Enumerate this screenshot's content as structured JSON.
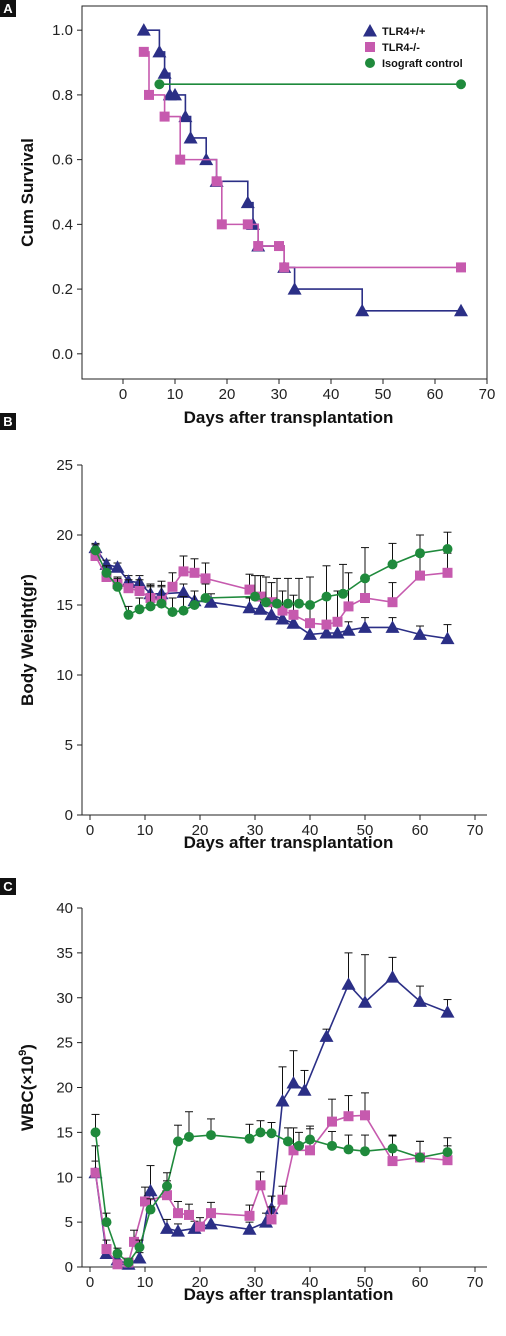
{
  "colors": {
    "tlr4_wt": "#2b2f86",
    "tlr4_ko": "#c65aae",
    "isograft": "#1f8a3c"
  },
  "chart_data": [
    {
      "panel": "A",
      "type": "line",
      "step": true,
      "xlabel": "Days after transplantation",
      "ylabel": "Cum Survival",
      "xlim": [
        -5,
        70
      ],
      "ylim": [
        -0.05,
        1.05
      ],
      "xticks": [
        0,
        10,
        20,
        30,
        40,
        50,
        60,
        70
      ],
      "yticks": [
        0.0,
        0.2,
        0.4,
        0.6,
        0.8,
        1.0
      ],
      "ytick_format": "fixed1",
      "legend_position": "top-right",
      "series": [
        {
          "name": "TLR4+/+",
          "marker": "triangle",
          "color_key": "tlr4_wt",
          "x": [
            4,
            7,
            8,
            9,
            10,
            12,
            13,
            16,
            18,
            24,
            25,
            26,
            31,
            33,
            46,
            65
          ],
          "y": [
            1.0,
            0.933,
            0.867,
            0.8,
            0.8,
            0.733,
            0.667,
            0.6,
            0.533,
            0.467,
            0.4,
            0.333,
            0.267,
            0.2,
            0.133,
            0.133
          ]
        },
        {
          "name": "TLR4-/-",
          "marker": "square",
          "color_key": "tlr4_ko",
          "x": [
            4,
            5,
            8,
            11,
            18,
            19,
            24,
            26,
            30,
            31,
            65
          ],
          "y": [
            0.933,
            0.8,
            0.733,
            0.6,
            0.533,
            0.4,
            0.4,
            0.333,
            0.333,
            0.267,
            0.267
          ]
        },
        {
          "name": "Isograft control",
          "marker": "circle",
          "color_key": "isograft",
          "x": [
            7,
            65
          ],
          "y": [
            0.833,
            0.833
          ]
        }
      ]
    },
    {
      "panel": "B",
      "type": "line",
      "xlabel": "Days after transplantation",
      "ylabel": "Body Weight(gr)",
      "xlim": [
        0,
        70
      ],
      "ylim": [
        0,
        25
      ],
      "xticks": [
        0,
        10,
        20,
        30,
        40,
        50,
        60,
        70
      ],
      "yticks": [
        0,
        5,
        10,
        15,
        20,
        25
      ],
      "series": [
        {
          "name": "TLR4+/+",
          "marker": "triangle",
          "color_key": "tlr4_wt",
          "x": [
            1,
            3,
            5,
            7,
            9,
            11,
            13,
            17,
            19,
            22,
            29,
            31,
            33,
            35,
            37,
            40,
            43,
            45,
            47,
            50,
            55,
            60,
            65
          ],
          "y": [
            19.1,
            17.9,
            17.7,
            16.7,
            16.6,
            15.8,
            15.8,
            15.9,
            15.3,
            15.2,
            14.8,
            14.7,
            14.3,
            14.0,
            13.7,
            12.9,
            13.0,
            13.0,
            13.2,
            13.4,
            13.4,
            12.9,
            12.6
          ],
          "err": [
            0.3,
            0.3,
            0.3,
            0.4,
            0.5,
            0.6,
            0.6,
            0.6,
            0.7,
            0.6,
            0.7,
            0.8,
            0.7,
            0.8,
            0.8,
            0.6,
            0.6,
            0.6,
            0.6,
            0.7,
            0.7,
            0.6,
            1.0
          ]
        },
        {
          "name": "TLR4-/-",
          "marker": "square",
          "color_key": "tlr4_ko",
          "x": [
            1,
            3,
            5,
            7,
            9,
            11,
            13,
            15,
            17,
            19,
            21,
            29,
            31,
            33,
            35,
            37,
            40,
            43,
            45,
            47,
            50,
            55,
            60,
            65
          ],
          "y": [
            18.5,
            17.0,
            16.5,
            16.2,
            16.0,
            15.5,
            15.3,
            16.3,
            17.4,
            17.3,
            16.9,
            16.1,
            15.6,
            15.2,
            14.6,
            14.3,
            13.7,
            13.6,
            13.8,
            14.9,
            15.5,
            15.2,
            17.1,
            17.3
          ],
          "err": [
            0.4,
            0.4,
            0.5,
            0.6,
            0.8,
            1.0,
            1.0,
            1.0,
            1.1,
            1.0,
            1.1,
            1.1,
            1.5,
            1.4,
            1.4,
            1.4,
            1.5,
            1.8,
            2.2,
            2.4,
            1.5,
            1.4,
            1.4,
            1.4
          ]
        },
        {
          "name": "Isograft control",
          "marker": "circle",
          "color_key": "isograft",
          "x": [
            1,
            3,
            5,
            7,
            9,
            11,
            13,
            15,
            17,
            19,
            21,
            30,
            32,
            34,
            36,
            38,
            40,
            43,
            46,
            50,
            55,
            60,
            65
          ],
          "y": [
            18.9,
            17.3,
            16.3,
            14.3,
            14.7,
            14.9,
            15.1,
            14.5,
            14.6,
            15.0,
            15.5,
            15.6,
            15.2,
            15.1,
            15.1,
            15.1,
            15.0,
            15.6,
            15.8,
            16.9,
            17.9,
            18.7,
            19.0
          ],
          "err": [
            0.4,
            0.5,
            0.6,
            0.6,
            0.8,
            1.4,
            1.6,
            1.0,
            1.0,
            1.0,
            1.0,
            1.5,
            1.8,
            1.8,
            1.8,
            1.8,
            2.0,
            2.2,
            2.1,
            2.2,
            1.5,
            1.3,
            1.2
          ]
        }
      ]
    },
    {
      "panel": "C",
      "type": "line",
      "xlabel": "Days after transplantation",
      "ylabel_base": "WBC(×10",
      "ylabel_sup": "9",
      "ylabel_end": ")",
      "xlim": [
        0,
        70
      ],
      "ylim": [
        0,
        40
      ],
      "xticks": [
        0,
        10,
        20,
        30,
        40,
        50,
        60,
        70
      ],
      "yticks": [
        0,
        5,
        10,
        15,
        20,
        25,
        30,
        35,
        40
      ],
      "series": [
        {
          "name": "TLR4+/+",
          "marker": "triangle",
          "color_key": "tlr4_wt",
          "x": [
            1,
            3,
            5,
            7,
            9,
            11,
            14,
            16,
            19,
            22,
            29,
            32,
            33,
            35,
            37,
            39,
            43,
            47,
            50,
            55,
            60,
            65
          ],
          "y": [
            10.5,
            1.5,
            0.8,
            0.3,
            1.0,
            8.5,
            4.3,
            4.0,
            4.3,
            4.8,
            4.2,
            5.0,
            6.5,
            18.5,
            20.5,
            19.7,
            25.7,
            31.5,
            29.5,
            32.3,
            29.6,
            28.4
          ],
          "err": [
            3.0,
            0.8,
            0.5,
            0.3,
            0.6,
            2.8,
            1.0,
            0.8,
            0.8,
            1.0,
            0.8,
            1.0,
            1.4,
            3.8,
            3.6,
            2.2,
            0.8,
            3.5,
            5.3,
            2.2,
            1.7,
            1.4
          ]
        },
        {
          "name": "TLR4-/-",
          "marker": "square",
          "color_key": "tlr4_ko",
          "x": [
            1,
            3,
            5,
            7,
            8,
            10,
            14,
            16,
            18,
            20,
            22,
            29,
            31,
            33,
            35,
            37,
            40,
            44,
            47,
            50,
            55,
            60,
            65
          ],
          "y": [
            10.5,
            2.0,
            0.3,
            0.5,
            2.8,
            7.3,
            8.0,
            6.0,
            5.8,
            4.5,
            6.0,
            5.7,
            9.1,
            5.3,
            7.5,
            13.0,
            13.0,
            16.2,
            16.8,
            16.9,
            11.8,
            12.2,
            11.9
          ],
          "err": [
            1.3,
            1.0,
            0.5,
            0.5,
            1.3,
            1.6,
            1.6,
            1.3,
            1.2,
            1.0,
            1.2,
            1.2,
            1.5,
            1.4,
            1.5,
            2.5,
            2.4,
            2.5,
            2.3,
            2.5,
            2.8,
            1.8,
            1.6
          ]
        },
        {
          "name": "Isograft control",
          "marker": "circle",
          "color_key": "isograft",
          "x": [
            1,
            3,
            5,
            7,
            9,
            11,
            14,
            16,
            18,
            22,
            29,
            31,
            33,
            36,
            38,
            40,
            44,
            47,
            50,
            55,
            60,
            65
          ],
          "y": [
            15.0,
            5.0,
            1.5,
            0.5,
            2.2,
            6.4,
            9.0,
            14.0,
            14.5,
            14.7,
            14.3,
            15.0,
            14.9,
            14.0,
            13.5,
            14.2,
            13.5,
            13.1,
            12.9,
            13.2,
            12.2,
            12.8
          ],
          "err": [
            2.0,
            1.0,
            0.6,
            0.4,
            0.8,
            1.2,
            1.5,
            1.8,
            2.8,
            1.8,
            1.6,
            1.3,
            1.2,
            1.5,
            1.5,
            1.5,
            1.6,
            1.6,
            1.8,
            1.5,
            1.8,
            1.6
          ]
        }
      ]
    }
  ]
}
